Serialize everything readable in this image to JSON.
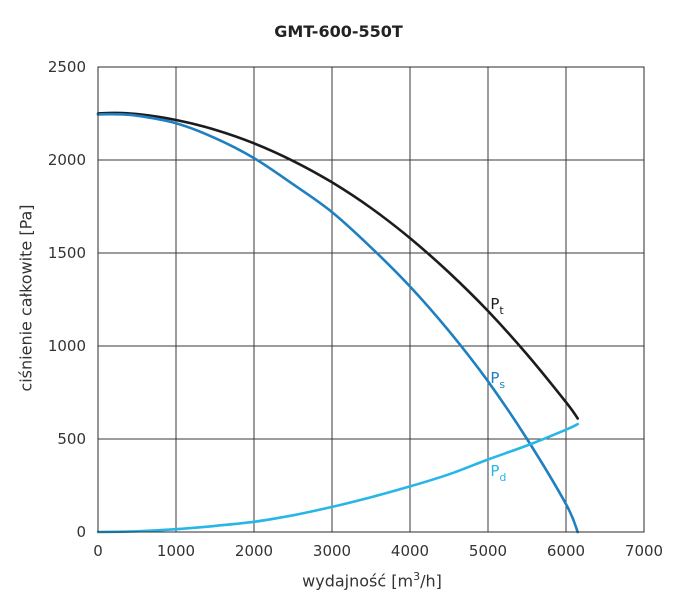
{
  "chart_data": {
    "type": "line",
    "title": "GMT-600-550T",
    "xlabel": {
      "prefix": "wydajność [m",
      "sup": "3",
      "suffix": "/h]"
    },
    "ylabel": "ciśnienie całkowite [Pa]",
    "xlim": [
      0,
      7000
    ],
    "ylim": [
      0,
      2500
    ],
    "xticks": [
      0,
      1000,
      2000,
      3000,
      4000,
      5000,
      6000,
      7000
    ],
    "yticks": [
      0,
      500,
      1000,
      1500,
      2000,
      2500
    ],
    "grid": true,
    "legend": "inline labels",
    "series": [
      {
        "name": "P",
        "sub": "t",
        "color": "#1c1c1c",
        "label_at": [
          5030,
          1200
        ],
        "x": [
          0,
          200,
          500,
          1000,
          1500,
          2000,
          2500,
          3000,
          3500,
          4000,
          4500,
          5000,
          5500,
          6000,
          6150
        ],
        "y": [
          2250,
          2253,
          2247,
          2215,
          2163,
          2090,
          1995,
          1880,
          1742,
          1580,
          1395,
          1188,
          955,
          698,
          610
        ]
      },
      {
        "name": "P",
        "sub": "s",
        "color": "#1e7fc1",
        "label_at": [
          5030,
          800
        ],
        "x": [
          0,
          200,
          500,
          1000,
          1500,
          2000,
          2500,
          3000,
          3500,
          4000,
          4500,
          5000,
          5500,
          6000,
          6150
        ],
        "y": [
          2245,
          2246,
          2238,
          2198,
          2118,
          2010,
          1870,
          1720,
          1530,
          1320,
          1080,
          810,
          500,
          150,
          0
        ]
      },
      {
        "name": "P",
        "sub": "d",
        "color": "#28b6e8",
        "label_at": [
          5030,
          300
        ],
        "x": [
          0,
          500,
          1000,
          1500,
          2000,
          2500,
          3000,
          3500,
          4000,
          4500,
          5000,
          5500,
          6000,
          6150
        ],
        "y": [
          0,
          4,
          15,
          33,
          55,
          90,
          135,
          187,
          245,
          310,
          390,
          465,
          550,
          580
        ]
      }
    ]
  }
}
